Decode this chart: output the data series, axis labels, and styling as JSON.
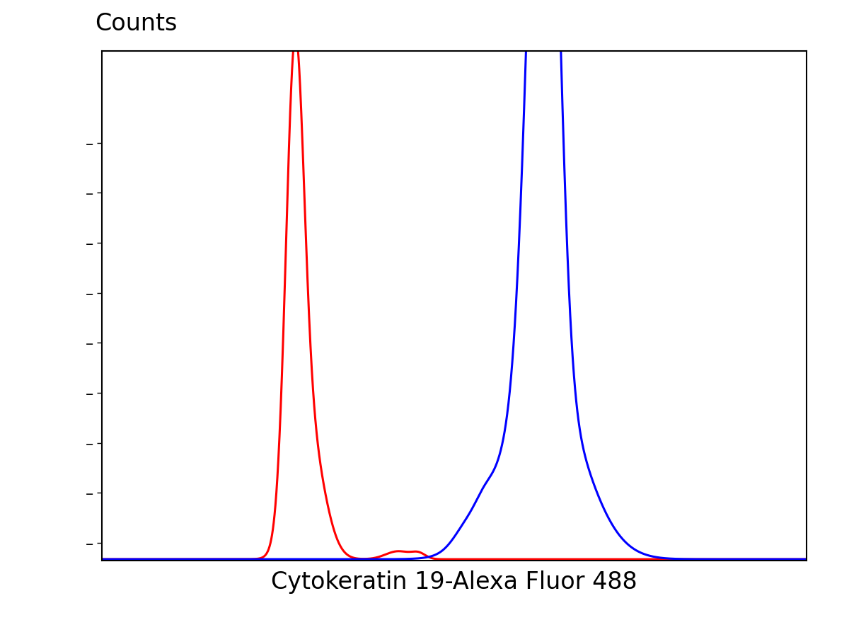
{
  "ylabel": "Counts",
  "xlabel": "Cytokeratin 19-Alexa Fluor 488",
  "ylabel_fontsize": 24,
  "xlabel_fontsize": 24,
  "background_color": "#ffffff",
  "red_color": "#ff0000",
  "blue_color": "#0000ff",
  "xmin": 0,
  "xmax": 1023,
  "ymin": 0,
  "ymax": 1.15,
  "line_width": 2.2,
  "num_yticks": 9
}
